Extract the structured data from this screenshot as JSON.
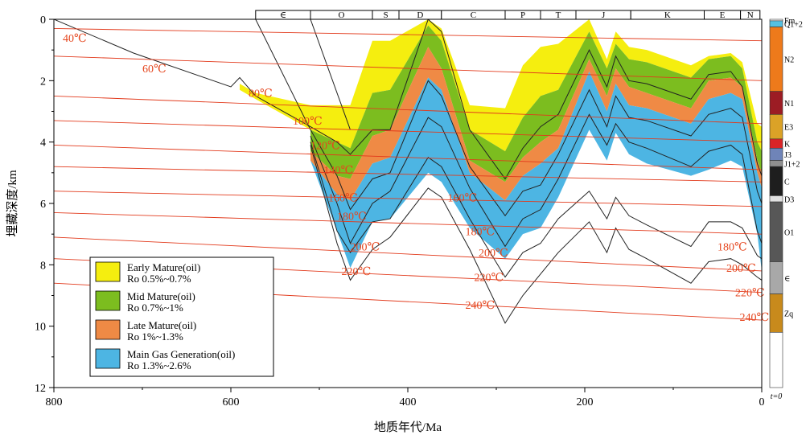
{
  "chart_data": {
    "type": "area",
    "xlabel": "地质年代/Ma",
    "ylabel": "埋藏深度/km",
    "xlim": [
      800,
      0
    ],
    "ylim": [
      0,
      12
    ],
    "x_ticks": [
      "800",
      "600",
      "400",
      "200",
      "0"
    ],
    "y_ticks": [
      "0",
      "2",
      "4",
      "6",
      "8",
      "10",
      "12"
    ],
    "periods": [
      {
        "label": "∈",
        "start": 572,
        "end": 510
      },
      {
        "label": "O",
        "start": 510,
        "end": 440
      },
      {
        "label": "S",
        "start": 440,
        "end": 410
      },
      {
        "label": "D",
        "start": 410,
        "end": 362
      },
      {
        "label": "C",
        "start": 362,
        "end": 290
      },
      {
        "label": "P",
        "start": 290,
        "end": 250
      },
      {
        "label": "T",
        "start": 250,
        "end": 210
      },
      {
        "label": "J",
        "start": 210,
        "end": 148
      },
      {
        "label": "K",
        "start": 148,
        "end": 65
      },
      {
        "label": "E",
        "start": 65,
        "end": 24
      },
      {
        "label": "N",
        "start": 24,
        "end": 2
      }
    ],
    "burial_x": [
      800,
      710,
      600,
      590,
      572,
      510,
      480,
      465,
      440,
      420,
      377,
      362,
      330,
      290,
      270,
      250,
      230,
      195,
      175,
      165,
      150,
      130,
      80,
      60,
      35,
      22,
      5,
      0
    ],
    "burial_curves": [
      {
        "name": "top",
        "y": [
          0,
          1.1,
          2.2,
          1.9,
          2.5,
          3.5,
          4.0,
          4.4,
          3.6,
          3.6,
          0.0,
          0.4,
          3.6,
          5.2,
          4.2,
          3.5,
          3.1,
          1.0,
          2.2,
          1.2,
          2.0,
          2.1,
          2.6,
          1.8,
          1.7,
          2.2,
          4.7,
          5.1
        ]
      },
      {
        "name": "h1",
        "y": [
          null,
          null,
          null,
          null,
          null,
          3.6,
          5.1,
          6.2,
          5.2,
          5.0,
          2.0,
          2.5,
          4.8,
          6.4,
          5.6,
          5.4,
          4.4,
          2.3,
          3.5,
          2.5,
          3.2,
          3.3,
          3.8,
          3.1,
          2.9,
          3.2,
          5.6,
          6.0
        ]
      },
      {
        "name": "h2",
        "y": [
          null,
          null,
          null,
          null,
          null,
          3.8,
          6.0,
          7.3,
          6.0,
          5.6,
          3.2,
          3.5,
          5.5,
          7.4,
          6.5,
          6.2,
          5.2,
          3.1,
          4.1,
          3.4,
          4.0,
          4.2,
          4.8,
          4.3,
          4.1,
          4.4,
          6.9,
          7.3
        ]
      },
      {
        "name": "h3",
        "y": [
          null,
          null,
          null,
          null,
          null,
          4.0,
          6.9,
          7.6,
          6.6,
          6.5,
          4.5,
          4.8,
          6.5,
          8.4,
          7.6,
          7.3,
          6.5,
          5.6,
          6.5,
          5.8,
          6.4,
          6.7,
          7.4,
          6.6,
          6.6,
          6.8,
          7.7,
          7.8
        ]
      },
      {
        "name": "bottom",
        "y": [
          null,
          null,
          null,
          null,
          null,
          4.1,
          7.3,
          8.5,
          7.5,
          7.1,
          5.5,
          5.8,
          7.5,
          9.9,
          9.0,
          8.3,
          7.6,
          6.6,
          7.6,
          6.8,
          7.5,
          7.8,
          8.6,
          7.9,
          7.8,
          8.0,
          8.4,
          8.5
        ]
      }
    ],
    "maturity_bands": [
      {
        "name": "Early Mature(oil)",
        "range": "Ro 0.5%~0.7%",
        "color": "#f5ee0f",
        "top": [
          null,
          null,
          null,
          2.1,
          2.4,
          2.8,
          2.8,
          2.8,
          0.7,
          0.7,
          0.0,
          0.3,
          2.8,
          2.9,
          1.5,
          0.9,
          0.8,
          0.0,
          1.3,
          0.4,
          0.9,
          1.0,
          1.5,
          1.2,
          1.1,
          1.4,
          3.4,
          3.5
        ],
        "bottom": [
          null,
          null,
          null,
          2.3,
          2.6,
          3.6,
          4.0,
          4.2,
          2.4,
          2.3,
          0.2,
          0.7,
          3.6,
          4.3,
          3.2,
          2.5,
          2.3,
          0.4,
          1.6,
          0.8,
          1.3,
          1.4,
          1.9,
          1.3,
          1.2,
          1.6,
          4.0,
          4.3
        ]
      },
      {
        "name": "Mid Mature(oil)",
        "range": "Ro 0.7%~1%",
        "color": "#7cbd1f",
        "top": [
          null,
          null,
          null,
          null,
          null,
          3.6,
          4.0,
          4.2,
          2.4,
          2.3,
          0.2,
          0.7,
          3.6,
          4.3,
          3.2,
          2.5,
          2.3,
          0.4,
          1.6,
          0.8,
          1.3,
          1.4,
          1.9,
          1.3,
          1.2,
          1.6,
          4.0,
          4.3
        ],
        "bottom": [
          null,
          null,
          null,
          null,
          null,
          4.3,
          5.1,
          5.2,
          3.8,
          3.6,
          0.9,
          1.6,
          4.6,
          5.3,
          4.5,
          4.0,
          3.6,
          1.3,
          2.5,
          1.6,
          2.2,
          2.4,
          2.9,
          2.0,
          1.9,
          2.2,
          4.6,
          5.0
        ]
      },
      {
        "name": "Late Mature(oil)",
        "range": "Ro 1%~1.3%",
        "color": "#ef8a45",
        "top": [
          null,
          null,
          null,
          null,
          null,
          4.3,
          5.1,
          5.2,
          3.8,
          3.6,
          0.9,
          1.6,
          4.6,
          5.3,
          4.5,
          4.0,
          3.6,
          1.3,
          2.5,
          1.6,
          2.2,
          2.4,
          2.9,
          2.0,
          1.9,
          2.2,
          4.6,
          5.0
        ],
        "bottom": [
          null,
          null,
          null,
          null,
          null,
          4.6,
          5.7,
          5.9,
          4.7,
          4.5,
          1.9,
          2.3,
          5.0,
          5.9,
          5.1,
          4.7,
          4.2,
          1.7,
          3.0,
          2.1,
          2.8,
          2.9,
          3.4,
          2.6,
          2.4,
          2.6,
          5.0,
          5.5
        ]
      },
      {
        "name": "Main Gas Generation(oil)",
        "range": "Ro 1.3%~2.6%",
        "color": "#4db5e3",
        "top": [
          null,
          null,
          null,
          null,
          null,
          4.6,
          5.7,
          5.9,
          4.7,
          4.5,
          1.9,
          2.3,
          5.0,
          5.9,
          5.1,
          4.7,
          4.2,
          1.7,
          3.0,
          2.1,
          2.8,
          2.9,
          3.4,
          2.6,
          2.4,
          2.6,
          5.0,
          5.5
        ],
        "bottom": [
          null,
          null,
          null,
          null,
          null,
          4.6,
          6.9,
          8.1,
          6.6,
          6.5,
          5.0,
          5.3,
          6.8,
          7.8,
          7.0,
          6.8,
          5.8,
          3.6,
          4.6,
          3.7,
          4.4,
          4.7,
          5.1,
          4.9,
          4.6,
          4.8,
          7.0,
          8.2
        ]
      }
    ],
    "isotherms": [
      {
        "label": "40℃",
        "y0": 0.3,
        "y1": 0.7
      },
      {
        "label": "60℃",
        "y0": 1.2,
        "y1": 2.0
      },
      {
        "label": "80℃",
        "y0": 2.5,
        "y1": 3.4
      },
      {
        "label": "100℃",
        "y0": 3.3,
        "y1": 4.0
      },
      {
        "label": "120℃",
        "y0": 4.1,
        "y1": 4.9
      },
      {
        "label": "140℃",
        "y0": 4.8,
        "y1": 5.3
      },
      {
        "label": "160℃",
        "y0": 5.6,
        "y1": 6.1
      },
      {
        "label": "180℃",
        "y0": 6.3,
        "y1": 7.0
      },
      {
        "label": "200℃",
        "y0": 7.1,
        "y1": 8.2
      },
      {
        "label": "220℃",
        "y0": 7.8,
        "y1": 8.9
      },
      {
        "label": "240℃",
        "y0": 8.6,
        "y1": 9.8
      }
    ],
    "isotherm_labels": [
      {
        "text": "40℃",
        "x": 790,
        "y": 0.6
      },
      {
        "text": "60℃",
        "x": 700,
        "y": 1.6
      },
      {
        "text": "80℃",
        "x": 580,
        "y": 2.4
      },
      {
        "text": "100℃",
        "x": 530,
        "y": 3.3
      },
      {
        "text": "120℃",
        "x": 510,
        "y": 4.1
      },
      {
        "text": "140℃",
        "x": 495,
        "y": 4.9
      },
      {
        "text": "160℃",
        "x": 490,
        "y": 5.8
      },
      {
        "text": "180℃",
        "x": 480,
        "y": 6.4
      },
      {
        "text": "200℃",
        "x": 465,
        "y": 7.4
      },
      {
        "text": "220℃",
        "x": 475,
        "y": 8.2
      },
      {
        "text": "160℃",
        "x": 355,
        "y": 5.8
      },
      {
        "text": "180℃",
        "x": 335,
        "y": 6.9
      },
      {
        "text": "200℃",
        "x": 320,
        "y": 7.6
      },
      {
        "text": "220℃",
        "x": 325,
        "y": 8.4
      },
      {
        "text": "240℃",
        "x": 335,
        "y": 9.3
      },
      {
        "text": "180℃",
        "x": 50,
        "y": 7.4
      },
      {
        "text": "200℃",
        "x": 40,
        "y": 8.1
      },
      {
        "text": "220℃",
        "x": 30,
        "y": 8.9
      },
      {
        "text": "240℃",
        "x": 25,
        "y": 9.7
      }
    ],
    "stratigraphy_column": {
      "units": [
        {
          "label": "Fm",
          "from": 0.0,
          "to": 0.05,
          "color": "#ffffff"
        },
        {
          "label": "Q1+2",
          "from": 0.05,
          "to": 0.25,
          "color": "#55c0e0"
        },
        {
          "label": "N2",
          "from": 0.25,
          "to": 2.35,
          "color": "#ee7a1b"
        },
        {
          "label": "N1",
          "from": 2.35,
          "to": 3.1,
          "color": "#9c1c24"
        },
        {
          "label": "E3",
          "from": 3.1,
          "to": 3.9,
          "color": "#dba227"
        },
        {
          "label": "K",
          "from": 3.9,
          "to": 4.2,
          "color": "#d92427"
        },
        {
          "label": "J3",
          "from": 4.2,
          "to": 4.6,
          "color": "#6f84b8"
        },
        {
          "label": "J1+2",
          "from": 4.6,
          "to": 4.8,
          "color": "#8f8f8f"
        },
        {
          "label": "C",
          "from": 4.8,
          "to": 5.75,
          "color": "#1e1e1e"
        },
        {
          "label": "D3",
          "from": 5.75,
          "to": 5.95,
          "color": "#e0e0e0"
        },
        {
          "label": "O1",
          "from": 5.95,
          "to": 7.9,
          "color": "#575757"
        },
        {
          "label": "∈",
          "from": 7.9,
          "to": 8.95,
          "color": "#a8a8a8"
        },
        {
          "label": "Zq",
          "from": 8.95,
          "to": 10.2,
          "color": "#c88a1c"
        },
        {
          "label": "",
          "from": 10.2,
          "to": 12.0,
          "color": "#ffffff"
        }
      ],
      "bottom_label": "t=0"
    }
  }
}
